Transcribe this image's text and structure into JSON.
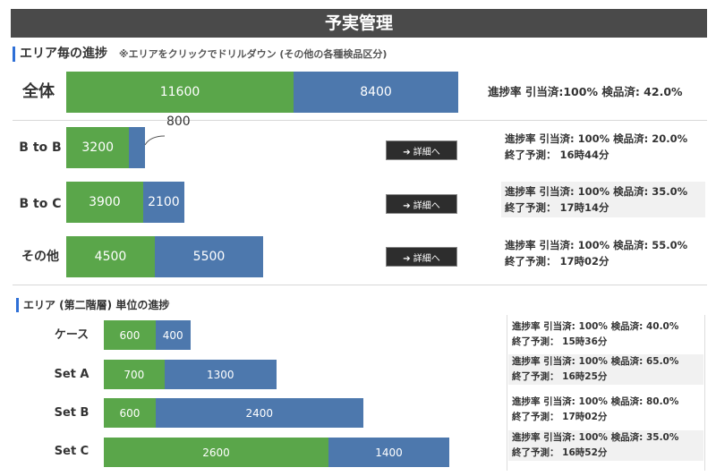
{
  "title": "予実管理",
  "section1": {
    "heading": "エリア毎の進捗",
    "note": "※エリアをクリックでドリルダウン (その他の各種検品区分)"
  },
  "section2": {
    "heading": "エリア (第二階層) 単位の進捗"
  },
  "detail_button_label": "➔ 詳細へ",
  "colors": {
    "done": "#5aa64a",
    "remaining": "#4d78ad",
    "title_bg": "#4a4a4a"
  },
  "total": {
    "label": "全体",
    "info": "進捗率 引当済:100% 検品済: 42.0%"
  },
  "areas": [
    {
      "label": "B to B",
      "info_line1": "進捗率 引当済: 100% 検品済: 20.0%",
      "info_line2": "終了予測： 16時44分"
    },
    {
      "label": "B to C",
      "info_line1": "進捗率 引当済: 100% 検品済: 35.0%",
      "info_line2": "終了予測： 17時14分"
    },
    {
      "label": "その他",
      "info_line1": "進捗率 引当済: 100% 検品済: 55.0%",
      "info_line2": "終了予測： 17時02分"
    }
  ],
  "subareas": [
    {
      "label": "ケース",
      "info_line1": "進捗率 引当済: 100% 検品済: 40.0%",
      "info_line2": "終了予測： 15時36分"
    },
    {
      "label": "Set A",
      "info_line1": "進捗率 引当済: 100% 検品済: 65.0%",
      "info_line2": "終了予測： 16時25分"
    },
    {
      "label": "Set B",
      "info_line1": "進捗率 引当済: 100% 検品済: 80.0%",
      "info_line2": "終了予測： 17時02分"
    },
    {
      "label": "Set C",
      "info_line1": "進捗率 引当済: 100% 検品済: 35.0%",
      "info_line2": "終了予測： 16時52分"
    }
  ],
  "chart_data": [
    {
      "type": "bar",
      "orientation": "horizontal",
      "stacked": true,
      "categories": [
        "全体"
      ],
      "series": [
        {
          "values": [
            11600
          ]
        },
        {
          "values": [
            8400
          ]
        }
      ]
    },
    {
      "type": "bar",
      "orientation": "horizontal",
      "stacked": true,
      "categories": [
        "B to B",
        "B to C",
        "その他"
      ],
      "series": [
        {
          "values": [
            3200,
            3900,
            4500
          ]
        },
        {
          "values": [
            800,
            2100,
            5500
          ]
        }
      ]
    },
    {
      "type": "bar",
      "orientation": "horizontal",
      "stacked": true,
      "categories": [
        "ケース",
        "Set A",
        "Set B",
        "Set C"
      ],
      "series": [
        {
          "values": [
            600,
            700,
            600,
            2600
          ]
        },
        {
          "values": [
            400,
            1300,
            2400,
            1400
          ]
        }
      ]
    }
  ]
}
